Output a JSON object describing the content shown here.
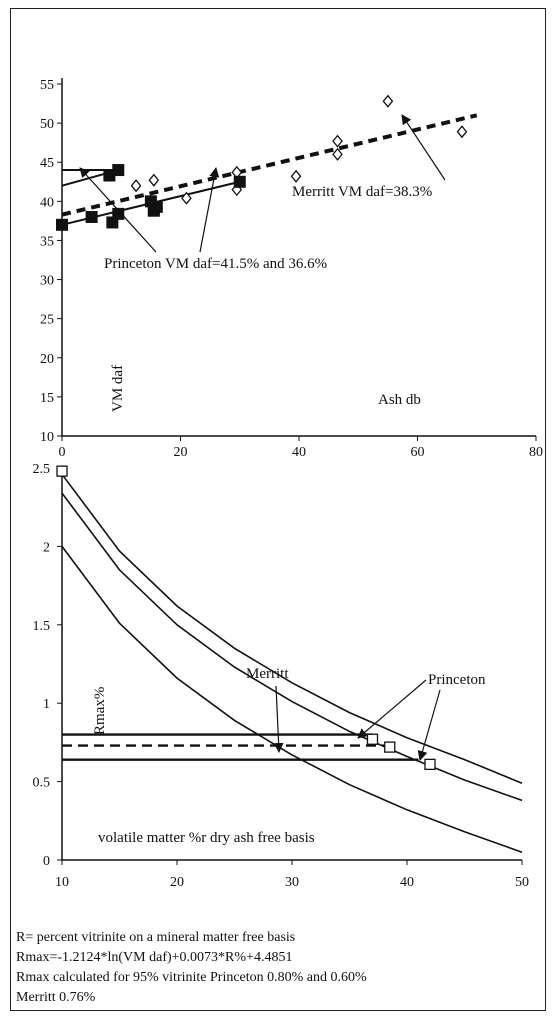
{
  "chart_data": [
    {
      "type": "scatter",
      "title": "",
      "xlabel": "Ash db",
      "ylabel": "VM daf",
      "xlim": [
        0,
        80
      ],
      "ylim": [
        10,
        55
      ],
      "xticks": [
        0,
        20,
        40,
        60,
        80
      ],
      "yticks": [
        10,
        15,
        20,
        25,
        30,
        35,
        40,
        45,
        50,
        55
      ],
      "grid": false,
      "series": [
        {
          "marker": "open-diamond",
          "points": [
            [
              12.5,
              42.0
            ],
            [
              15.5,
              42.7
            ],
            [
              21,
              40.4
            ],
            [
              29.5,
              41.5
            ],
            [
              29.5,
              43.7
            ],
            [
              39.5,
              43.2
            ],
            [
              46.5,
              46.0
            ],
            [
              46.5,
              47.7
            ],
            [
              55,
              52.8
            ],
            [
              67.5,
              48.9
            ]
          ]
        },
        {
          "marker": "filled-square",
          "points": [
            [
              0,
              37.0
            ],
            [
              5,
              38.0
            ],
            [
              8,
              43.3
            ],
            [
              9.5,
              44.0
            ],
            [
              8.5,
              37.3
            ],
            [
              9.5,
              38.4
            ],
            [
              15,
              40.0
            ],
            [
              15.5,
              39.0
            ],
            [
              15.5,
              38.8
            ],
            [
              16,
              39.3
            ],
            [
              30,
              42.5
            ]
          ]
        }
      ],
      "trendlines": [
        {
          "style": "dashed",
          "x": [
            0,
            70
          ],
          "y": [
            38.3,
            51.0
          ]
        },
        {
          "style": "solid",
          "x": [
            0,
            30
          ],
          "y": [
            37.0,
            42.5
          ]
        },
        {
          "style": "solid",
          "x": [
            0,
            9.5
          ],
          "y": [
            42.0,
            44.0
          ]
        },
        {
          "style": "solid",
          "x": [
            0,
            9.5
          ],
          "y": [
            44.0,
            44.0
          ]
        }
      ],
      "annotations": [
        {
          "text": "Merritt VM daf=38.3%"
        },
        {
          "text": "Princeton VM daf=41.5% and 36.6%"
        }
      ]
    },
    {
      "type": "line",
      "title": "",
      "xlabel": "volatile matter %r dry ash free basis",
      "ylabel": "Rmax%",
      "xlim": [
        10,
        50
      ],
      "ylim": [
        0,
        2.5
      ],
      "xticks": [
        10,
        20,
        30,
        40,
        50
      ],
      "yticks": [
        0,
        0.5,
        1,
        1.5,
        2,
        2.5
      ],
      "grid": false,
      "curves": [
        {
          "x": [
            10,
            15,
            20,
            25,
            30,
            35,
            40,
            45,
            50
          ],
          "y": [
            2.46,
            1.97,
            1.62,
            1.35,
            1.13,
            0.94,
            0.78,
            0.64,
            0.49
          ]
        },
        {
          "x": [
            10,
            15,
            20,
            25,
            30,
            35,
            40,
            45,
            50
          ],
          "y": [
            2.34,
            1.85,
            1.5,
            1.23,
            1.01,
            0.82,
            0.66,
            0.51,
            0.38
          ]
        },
        {
          "x": [
            10,
            15,
            20,
            25,
            30,
            35,
            40,
            45,
            50
          ],
          "y": [
            2.0,
            1.51,
            1.16,
            0.89,
            0.67,
            0.48,
            0.32,
            0.18,
            0.05
          ]
        }
      ],
      "hlines": [
        {
          "style": "solid",
          "y": 0.8,
          "x": [
            10,
            37
          ]
        },
        {
          "style": "dashed",
          "y": 0.73,
          "x": [
            10,
            38
          ]
        },
        {
          "style": "solid",
          "y": 0.64,
          "x": [
            10,
            41
          ]
        }
      ],
      "points": [
        [
          10,
          2.48
        ],
        [
          37,
          0.77
        ],
        [
          38.5,
          0.72
        ],
        [
          42,
          0.61
        ]
      ],
      "annotations": [
        {
          "text": "Merritt"
        },
        {
          "text": "Princeton"
        }
      ]
    }
  ],
  "notes": [
    "R= percent vitrinite on a mineral matter free basis",
    "Rmax=-1.2124*ln(VM daf)+0.0073*R%+4.4851",
    "Rmax calculated for 95% vitrinite Princeton 0.80% and 0.60%",
    "Merritt 0.76%"
  ]
}
